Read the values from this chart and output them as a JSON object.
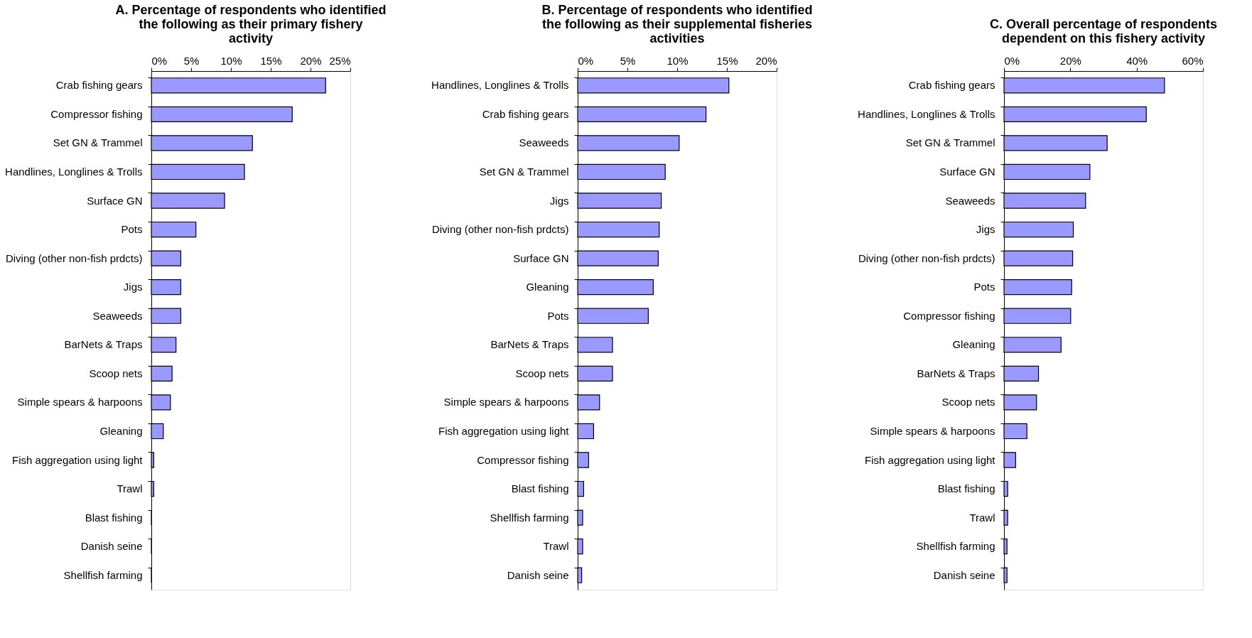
{
  "chart_data": [
    {
      "type": "bar",
      "orientation": "horizontal",
      "title": "A. Percentage of respondents who identified the following as their primary fishery activity",
      "categories": [
        "Crab fishing gears",
        "Compressor fishing",
        "Set GN & Trammel",
        "Handlines, Longlines & Trolls",
        "Surface GN",
        "Pots",
        "Diving (other non-fish prdcts)",
        "Jigs",
        "Seaweeds",
        "BarNets & Traps",
        "Scoop nets",
        "Simple spears & harpoons",
        "Gleaning",
        "Fish aggregation using light",
        "Trawl",
        "Blast fishing",
        "Danish seine",
        "Shellfish farming"
      ],
      "values": [
        21.9,
        17.7,
        12.7,
        11.7,
        9.2,
        5.6,
        3.7,
        3.7,
        3.7,
        3.1,
        2.6,
        2.4,
        1.5,
        0.3,
        0.3,
        0,
        0,
        0
      ],
      "color": "#9999ff",
      "xlim": [
        0,
        25
      ],
      "xticks": [
        {
          "value": 0,
          "label": "0%"
        },
        {
          "value": 5,
          "label": "5%"
        },
        {
          "value": 10,
          "label": "10%"
        },
        {
          "value": 15,
          "label": "15%"
        },
        {
          "value": 20,
          "label": "20%"
        },
        {
          "value": 25,
          "label": "25%"
        }
      ]
    },
    {
      "type": "bar",
      "orientation": "horizontal",
      "title": "B. Percentage of respondents who identified the following as their supplemental fisheries activities",
      "categories": [
        "Handlines, Longlines & Trolls",
        "Crab fishing gears",
        "Seaweeds",
        "Set GN & Trammel",
        "Jigs",
        "Diving (other non-fish prdcts)",
        "Surface GN",
        "Gleaning",
        "Pots",
        "BarNets & Traps",
        "Scoop nets",
        "Simple spears & harpoons",
        "Fish aggregation using light",
        "Compressor fishing",
        "Blast fishing",
        "Shellfish farming",
        "Trawl",
        "Danish seine"
      ],
      "values": [
        15.2,
        12.9,
        10.2,
        8.8,
        8.4,
        8.2,
        8.1,
        7.6,
        7.1,
        3.5,
        3.5,
        2.2,
        1.6,
        1.1,
        0.6,
        0.5,
        0.5,
        0.4
      ],
      "color": "#9999ff",
      "xlim": [
        0,
        20
      ],
      "xticks": [
        {
          "value": 0,
          "label": "0%"
        },
        {
          "value": 5,
          "label": "5%"
        },
        {
          "value": 10,
          "label": "10%"
        },
        {
          "value": 15,
          "label": "15%"
        },
        {
          "value": 20,
          "label": "20%"
        }
      ]
    },
    {
      "type": "bar",
      "orientation": "horizontal",
      "title": "C. Overall percentage of respondents dependent on this fishery activity",
      "categories": [
        "Crab fishing gears",
        "Handlines, Longlines & Trolls",
        "Set GN & Trammel",
        "Surface GN",
        "Seaweeds",
        "Jigs",
        "Diving (other non-fish prdcts)",
        "Pots",
        "Compressor fishing",
        "Gleaning",
        "BarNets & Traps",
        "Scoop nets",
        "Simple spears & harpoons",
        "Fish aggregation using light",
        "Blast fishing",
        "Trawl",
        "Shellfish farming",
        "Danish seine"
      ],
      "values": [
        48.4,
        42.9,
        31.1,
        25.9,
        24.6,
        20.9,
        20.7,
        20.4,
        20.1,
        17.2,
        10.4,
        9.8,
        6.9,
        3.5,
        1.1,
        1.1,
        0.9,
        0.9
      ],
      "color": "#9999ff",
      "xlim": [
        0,
        60
      ],
      "xticks": [
        {
          "value": 0,
          "label": "0%"
        },
        {
          "value": 20,
          "label": "20%"
        },
        {
          "value": 40,
          "label": "40%"
        },
        {
          "value": 60,
          "label": "60%"
        }
      ]
    }
  ]
}
